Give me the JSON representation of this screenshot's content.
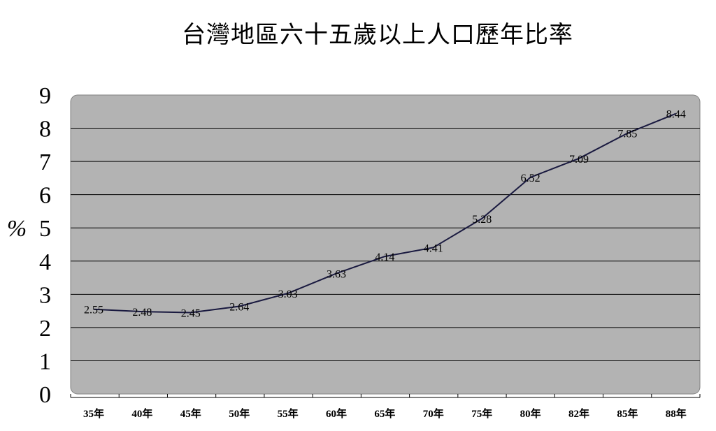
{
  "chart_data": {
    "type": "line",
    "title": "台灣地區六十五歲以上人口歷年比率",
    "ylabel": "%",
    "xlabel": "",
    "categories": [
      "35年",
      "40年",
      "45年",
      "50年",
      "55年",
      "60年",
      "65年",
      "70年",
      "75年",
      "80年",
      "82年",
      "85年",
      "88年"
    ],
    "values": [
      2.55,
      2.48,
      2.45,
      2.64,
      3.03,
      3.63,
      4.14,
      4.41,
      5.28,
      6.52,
      7.09,
      7.85,
      8.44
    ],
    "value_labels": [
      "2.55",
      "2.48",
      "2.45",
      "2.64",
      "3.03",
      "3.63",
      "4.14",
      "4.41",
      "5.28",
      "6.52",
      "7.09",
      "7.85",
      "8.44"
    ],
    "ylim": [
      0,
      9
    ],
    "yticks": [
      "0",
      "1",
      "2",
      "3",
      "4",
      "5",
      "6",
      "7",
      "8",
      "9"
    ],
    "grid": true,
    "legend": "none",
    "colors": {
      "plot_bg": "#b3b3b3",
      "line": "#1a1a40",
      "grid": "#000000"
    }
  }
}
